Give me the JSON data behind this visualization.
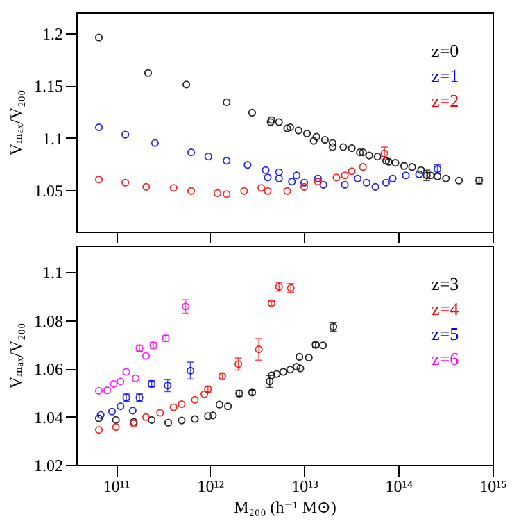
{
  "chart_data": [
    {
      "type": "scatter",
      "ylabel": "Vₘₐₓ/V₂₀₀",
      "log": "x",
      "marker": "circle",
      "legend": "top right",
      "tick_labels": "y",
      "xlim": [
        38000000000.0,
        1000000000000000.0
      ],
      "ylim": [
        1.01,
        1.22
      ],
      "xticks": [
        {
          "value": 100000000000.0,
          "label": null
        },
        {
          "value": 1000000000000.0,
          "label": null
        },
        {
          "value": 10000000000000.0,
          "label": null
        },
        {
          "value": 100000000000000.0,
          "label": null
        },
        {
          "value": 1000000000000000.0,
          "label": null
        }
      ],
      "yticks": [
        1.05,
        1.1,
        1.15,
        1.2
      ],
      "series": [
        {
          "name": "z=0",
          "color": "#000000",
          "x": [
            66000000000.0,
            220000000000.0,
            560000000000.0,
            1500000000000.0,
            2800000000000.0,
            4400000000000.0,
            6600000000000.0,
            12600000000000.0,
            20000000000000.0,
            42000000000000.0,
            79000000000000.0,
            200000000000000.0
          ],
          "values": [
            1.196,
            1.162,
            1.151,
            1.134,
            1.124,
            1.115,
            1.109,
            1.097,
            1.091,
            1.086,
            1.077,
            1.064
          ],
          "errors": [
            null,
            null,
            null,
            null,
            null,
            null,
            null,
            null,
            null,
            null,
            null,
            0.005
          ]
        },
        {
          "color": "#000000",
          "x": [
            4500000000000.0,
            5400000000000.0,
            7100000000000.0,
            8700000000000.0,
            10700000000000.0,
            13500000000000.0,
            16600000000000.0,
            20000000000000.0,
            26000000000000.0,
            32000000000000.0,
            39000000000000.0,
            49000000000000.0,
            60000000000000.0,
            74000000000000.0,
            93000000000000.0,
            115000000000000.0,
            140000000000000.0,
            174000000000000.0,
            220000000000000.0,
            260000000000000.0,
            320000000000000.0,
            440000000000000.0,
            720000000000000.0
          ],
          "values": [
            1.117,
            1.115,
            1.11,
            1.107,
            1.104,
            1.101,
            1.098,
            1.095,
            1.091,
            1.09,
            1.086,
            1.083,
            1.082,
            1.078,
            1.076,
            1.073,
            1.072,
            1.069,
            1.064,
            1.063,
            1.061,
            1.059,
            1.059
          ],
          "errors": [
            null,
            null,
            null,
            null,
            null,
            null,
            null,
            null,
            null,
            null,
            null,
            null,
            null,
            null,
            null,
            null,
            null,
            null,
            null,
            null,
            null,
            null,
            0.003
          ]
        },
        {
          "name": "z=1",
          "color": "#0000ff",
          "x": [
            66000000000.0,
            126000000000.0,
            260000000000.0,
            630000000000.0,
            960000000000.0,
            1500000000000.0,
            2500000000000.0,
            3900000000000.0,
            5400000000000.0,
            8300000000000.0,
            14000000000000.0,
            37000000000000.0
          ],
          "values": [
            1.11,
            1.103,
            1.095,
            1.086,
            1.082,
            1.078,
            1.074,
            1.069,
            1.067,
            1.064,
            1.061,
            1.061
          ]
        },
        {
          "color": "#0000ff",
          "x": [
            4100000000000.0,
            5400000000000.0,
            7400000000000.0,
            10000000000000.0,
            16000000000000.0,
            27000000000000.0,
            46000000000000.0,
            57000000000000.0,
            74000000000000.0,
            87000000000000.0,
            120000000000000.0,
            166000000000000.0,
            260000000000000.0
          ],
          "values": [
            1.062,
            1.061,
            1.058,
            1.057,
            1.055,
            1.055,
            1.057,
            1.053,
            1.057,
            1.061,
            1.064,
            1.065,
            1.07
          ],
          "errors": [
            null,
            null,
            null,
            null,
            null,
            null,
            null,
            null,
            null,
            null,
            null,
            null,
            0.004
          ]
        },
        {
          "name": "z=2",
          "color": "#ff0000",
          "x": [
            66000000000.0,
            126000000000.0,
            210000000000.0,
            410000000000.0,
            630000000000.0,
            1200000000000.0,
            1500000000000.0,
            2300000000000.0,
            3500000000000.0
          ],
          "values": [
            1.06,
            1.057,
            1.053,
            1.052,
            1.049,
            1.047,
            1.046,
            1.049,
            1.052
          ]
        },
        {
          "color": "#ff0000",
          "x": [
            4100000000000.0,
            6600000000000.0,
            10000000000000.0,
            14000000000000.0,
            22000000000000.0,
            27000000000000.0,
            32000000000000.0,
            42000000000000.0,
            71000000000000.0
          ],
          "values": [
            1.049,
            1.049,
            1.053,
            1.058,
            1.062,
            1.064,
            1.068,
            1.072,
            1.085
          ],
          "errors": [
            null,
            null,
            null,
            null,
            null,
            null,
            null,
            null,
            0.006
          ]
        }
      ]
    },
    {
      "type": "scatter",
      "xlabel": "M₂₀₀ (h⁻¹ M⊙)",
      "ylabel": "Vₘₐₓ/V₂₀₀",
      "log": "x",
      "marker": "circle",
      "legend": "top right",
      "xlim": [
        38000000000.0,
        1000000000000000.0
      ],
      "ylim": [
        1.02,
        1.111
      ],
      "xticks": [
        {
          "value": 100000000000.0,
          "label": "10¹¹"
        },
        {
          "value": 1000000000000.0,
          "label": "10¹²"
        },
        {
          "value": 10000000000000.0,
          "label": "10¹³"
        },
        {
          "value": 100000000000000.0,
          "label": "10¹⁴"
        },
        {
          "value": 1000000000000000.0,
          "label": "10¹⁵"
        }
      ],
      "yticks": [
        1.02,
        1.04,
        1.06,
        1.08,
        1.1
      ],
      "series": [
        {
          "name": "z=3",
          "color": "#000000",
          "x": [
            66000000000.0,
            100000000000.0,
            155000000000.0,
            240000000000.0,
            360000000000.0,
            500000000000.0,
            690000000000.0,
            950000000000.0,
            1070000000000.0,
            1260000000000.0,
            1550000000000.0,
            2040000000000.0,
            2800000000000.0,
            4300000000000.0
          ],
          "values": [
            1.0393,
            1.0386,
            1.0378,
            1.0386,
            1.0375,
            1.0384,
            1.039,
            1.0402,
            1.0405,
            1.045,
            1.0443,
            1.0496,
            1.05,
            1.0546
          ],
          "errors": [
            null,
            null,
            null,
            null,
            null,
            null,
            null,
            null,
            null,
            null,
            null,
            0.0012,
            0.001,
            0.0025
          ]
        },
        {
          "color": "#000000",
          "x": [
            4500000000000.0,
            5100000000000.0,
            6000000000000.0,
            7100000000000.0,
            8300000000000.0,
            8900000000000.0,
            9100000000000.0,
            11200000000000.0,
            13200000000000.0,
            15800000000000.0,
            20400000000000.0
          ],
          "values": [
            1.0571,
            1.0577,
            1.0586,
            1.0595,
            1.0607,
            1.0648,
            1.06,
            1.0645,
            1.0698,
            1.0696,
            1.0773
          ],
          "errors": [
            null,
            null,
            null,
            null,
            null,
            null,
            null,
            null,
            0.001,
            null,
            0.0018
          ]
        },
        {
          "name": "z=4",
          "color": "#ff0000",
          "x": [
            66000000000.0,
            100000000000.0,
            155000000000.0,
            209000000000.0,
            295000000000.0,
            410000000000.0,
            500000000000.0,
            690000000000.0,
            870000000000.0,
            950000000000.0,
            1350000000000.0,
            2000000000000.0,
            3300000000000.0
          ],
          "values": [
            1.0345,
            1.0357,
            1.0371,
            1.0398,
            1.0416,
            1.0439,
            1.0452,
            1.047,
            1.0493,
            1.0514,
            1.0568,
            1.0618,
            1.0679
          ],
          "errors": [
            null,
            null,
            null,
            null,
            null,
            null,
            null,
            null,
            null,
            0.0012,
            0.0013,
            0.0025,
            0.0045
          ]
        },
        {
          "color": "#ff0000",
          "x": [
            4500000000000.0,
            5400000000000.0,
            7200000000000.0
          ],
          "values": [
            1.0871,
            1.0939,
            1.0934
          ],
          "errors": [
            0.0008,
            0.0018,
            0.0018
          ]
        },
        {
          "name": "z=5",
          "color": "#0000ff",
          "x": [
            69000000000.0,
            91000000000.0,
            112000000000.0,
            129000000000.0,
            151000000000.0,
            178000000000.0,
            240000000000.0,
            355000000000.0,
            620000000000.0
          ],
          "values": [
            1.0407,
            1.0421,
            1.0443,
            1.0479,
            1.0425,
            1.0479,
            1.0536,
            1.0529,
            1.0591
          ],
          "errors": [
            null,
            null,
            null,
            0.0015,
            null,
            0.0015,
            0.0013,
            0.0025,
            0.0035
          ]
        },
        {
          "name": "z=6",
          "color": "#ff00ff",
          "x": [
            66000000000.0,
            81000000000.0,
            95000000000.0,
            112000000000.0,
            129000000000.0,
            162000000000.0,
            178000000000.0,
            209000000000.0,
            250000000000.0,
            340000000000.0,
            550000000000.0
          ],
          "values": [
            1.0507,
            1.0509,
            1.0536,
            1.0546,
            1.0586,
            1.0559,
            1.0684,
            1.0652,
            1.0696,
            1.0725,
            1.0857
          ],
          "errors": [
            null,
            null,
            null,
            null,
            null,
            null,
            0.0012,
            null,
            0.0012,
            0.0012,
            0.0028
          ]
        }
      ]
    }
  ]
}
